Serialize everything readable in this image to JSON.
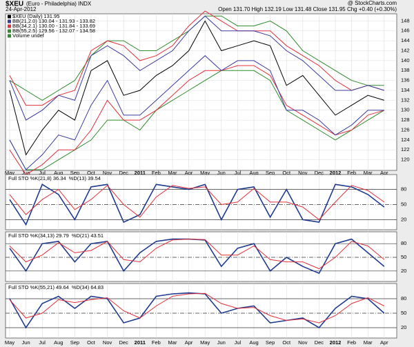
{
  "header": {
    "symbol": "$XEU",
    "name": "(Euro - Philadelphia) INDX",
    "date": "24-Apr-2012",
    "quote": "Open 131.70  High 132.19  Low 131.48  Close 131.95  Chg +0.40 (+0.30%)",
    "watermark": "@ StockCharts.com"
  },
  "chart_data": [
    {
      "type": "line",
      "note": "Volume undef",
      "categories": [
        "May",
        "Jun",
        "Jul",
        "Aug",
        "Sep",
        "Oct",
        "Nov",
        "Dec",
        "2011",
        "Feb",
        "Mar",
        "Apr",
        "May",
        "Jun",
        "Jul",
        "Aug",
        "Sep",
        "Oct",
        "Nov",
        "Dec",
        "2012",
        "Feb",
        "Mar",
        "Apr"
      ],
      "ylim": [
        118,
        150
      ],
      "yticks": [
        120,
        122,
        124,
        126,
        128,
        130,
        132,
        134,
        136,
        138,
        140,
        142,
        144,
        146,
        148
      ],
      "grid": true,
      "series": [
        {
          "name": "BB(55,2.5) 129.56 - 132.07 - 134.58",
          "color": "#2e8b2e",
          "values": [
            136,
            134,
            132,
            134,
            136,
            141,
            144,
            144,
            142,
            142,
            144,
            146,
            149,
            149,
            147,
            147,
            148,
            146,
            142,
            140,
            138,
            136,
            135,
            135
          ]
        },
        {
          "name": "BB(55,2.5) 129.56 - 132.07 - 134.58",
          "color": "#2e8b2e",
          "values": [
            124,
            118,
            118,
            120,
            122,
            124,
            128,
            128,
            126,
            130,
            132,
            134,
            136,
            138,
            138,
            138,
            136,
            130,
            128,
            126,
            124,
            126,
            128,
            130
          ]
        },
        {
          "name": "BB(34,2.1) 130.00 - 131.84 - 133.69",
          "color": "#e0303a",
          "values": [
            137,
            131,
            131,
            133,
            134,
            142,
            144,
            143,
            140,
            141,
            143,
            147,
            150,
            148,
            146,
            146,
            146,
            143,
            141,
            139,
            136,
            134,
            135,
            134
          ]
        },
        {
          "name": "BB(34,2.1) 130.00 - 131.84 - 133.69",
          "color": "#e0303a",
          "values": [
            122,
            117,
            119,
            122,
            122,
            126,
            132,
            128,
            128,
            130,
            133,
            136,
            138,
            138,
            139,
            139,
            137,
            131,
            129,
            127,
            125,
            126,
            129,
            130
          ]
        },
        {
          "name": "BB(21,2.0) 130.04 - 131.93 - 133.82",
          "color": "#3a3aa0",
          "values": [
            136,
            128,
            130,
            133,
            132,
            141,
            143,
            141,
            138,
            140,
            142,
            146,
            149,
            146,
            146,
            146,
            145,
            142,
            140,
            137,
            134,
            134,
            135,
            134
          ]
        },
        {
          "name": "BB(21,2.0) 130.04 - 131.93 - 133.82",
          "color": "#3a3aa0",
          "values": [
            124,
            118,
            121,
            125,
            124,
            131,
            136,
            129,
            129,
            132,
            135,
            138,
            141,
            138,
            140,
            140,
            138,
            130,
            130,
            128,
            125,
            127,
            130,
            130
          ]
        },
        {
          "name": "$XEU (Daily) 131.95",
          "color": "#000000",
          "values": [
            134,
            121,
            126,
            130,
            128,
            138,
            140,
            133,
            134,
            137,
            139,
            142,
            148,
            142,
            143,
            144,
            143,
            135,
            137,
            133,
            129,
            131,
            133,
            132
          ]
        }
      ]
    },
    {
      "type": "line",
      "ylim": [
        0,
        100
      ],
      "yticks": [
        20,
        50,
        80
      ],
      "series": [
        {
          "name": "Full STO %K(21,8) 36.34",
          "color": "#1f3a8f",
          "values": [
            60,
            10,
            90,
            70,
            20,
            85,
            90,
            15,
            30,
            90,
            85,
            80,
            90,
            20,
            80,
            85,
            25,
            80,
            20,
            15,
            90,
            85,
            70,
            45
          ]
        },
        {
          "name": "%D(13) 39.54",
          "color": "#e0303a",
          "values": [
            70,
            30,
            60,
            80,
            40,
            60,
            88,
            50,
            25,
            65,
            88,
            82,
            85,
            50,
            55,
            82,
            55,
            55,
            45,
            20,
            55,
            88,
            78,
            55
          ]
        }
      ]
    },
    {
      "type": "line",
      "ylim": [
        0,
        100
      ],
      "yticks": [
        20,
        50,
        80
      ],
      "series": [
        {
          "name": "Full STO %K(34,13) 29.79",
          "color": "#1f3a8f",
          "values": [
            70,
            20,
            80,
            85,
            40,
            80,
            85,
            20,
            60,
            85,
            90,
            90,
            88,
            30,
            70,
            80,
            20,
            50,
            30,
            15,
            80,
            90,
            60,
            30
          ]
        },
        {
          "name": "%D(21) 43.51",
          "color": "#e0303a",
          "values": [
            75,
            40,
            55,
            82,
            60,
            65,
            85,
            45,
            40,
            70,
            88,
            90,
            89,
            55,
            55,
            75,
            45,
            40,
            40,
            25,
            50,
            85,
            75,
            45
          ]
        }
      ]
    },
    {
      "type": "line",
      "ylim": [
        0,
        100
      ],
      "yticks": [
        20,
        50,
        80
      ],
      "categories": [
        "May",
        "Jun",
        "Jul",
        "Aug",
        "Sep",
        "Oct",
        "Nov",
        "Dec",
        "2011",
        "Feb",
        "Mar",
        "Apr",
        "May",
        "Jun",
        "Jul",
        "Aug",
        "Sep",
        "Oct",
        "Nov",
        "Dec",
        "2012",
        "Feb",
        "Mar",
        "Apr"
      ],
      "series": [
        {
          "name": "Full STO %K(55,21) 49.64",
          "color": "#1f3a8f",
          "values": [
            80,
            20,
            70,
            85,
            60,
            85,
            80,
            30,
            40,
            85,
            90,
            92,
            90,
            50,
            60,
            65,
            30,
            35,
            40,
            20,
            60,
            85,
            80,
            50
          ]
        },
        {
          "name": "%D(34) 64.83",
          "color": "#e0303a",
          "values": [
            78,
            40,
            50,
            78,
            72,
            78,
            82,
            55,
            40,
            65,
            85,
            90,
            91,
            70,
            60,
            62,
            45,
            35,
            38,
            30,
            45,
            70,
            82,
            65
          ]
        }
      ]
    }
  ]
}
